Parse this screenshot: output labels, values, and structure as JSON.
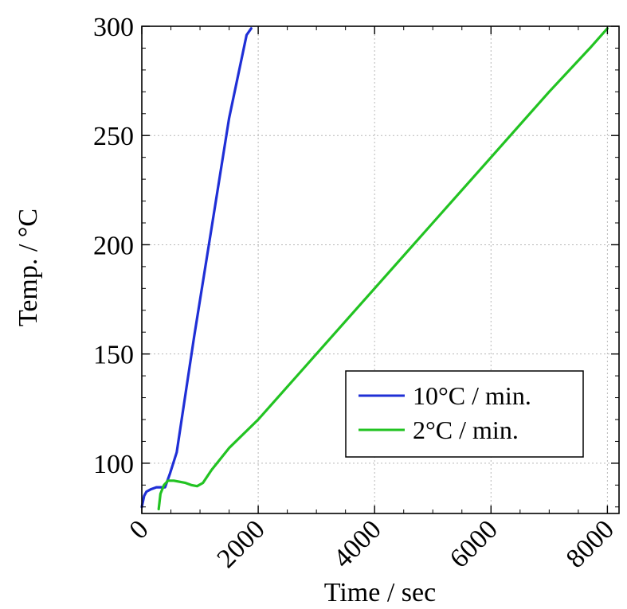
{
  "chart_data": {
    "type": "line",
    "title": "",
    "xlabel": "Time / sec",
    "ylabel": "Temp. / °C",
    "xlim": [
      0,
      8200
    ],
    "ylim": [
      77,
      300
    ],
    "xticks": [
      0,
      2000,
      4000,
      6000,
      8000
    ],
    "yticks": [
      100,
      150,
      200,
      250,
      300
    ],
    "xtick_labels": [
      "0",
      "2000",
      "4000",
      "6000",
      "8000"
    ],
    "ytick_labels": [
      "100",
      "150",
      "200",
      "250",
      "300"
    ],
    "grid": true,
    "legend_position": "lower-right",
    "series": [
      {
        "name": "10°C / min.",
        "color": "#1f2fd6",
        "x": [
          0,
          40,
          80,
          150,
          250,
          330,
          400,
          480,
          600,
          900,
          1200,
          1500,
          1800,
          1880
        ],
        "y": [
          80,
          85,
          87,
          88,
          89,
          89,
          89,
          95,
          105,
          158,
          208,
          258,
          296,
          299
        ]
      },
      {
        "name": "2°C / min.",
        "color": "#22c322",
        "x": [
          290,
          320,
          380,
          450,
          550,
          650,
          750,
          850,
          950,
          1050,
          1200,
          1500,
          2000,
          3000,
          4000,
          5000,
          6000,
          7000,
          7700,
          8000
        ],
        "y": [
          79,
          86,
          90,
          92,
          92,
          91.5,
          91,
          90,
          89.5,
          91,
          97,
          107,
          120,
          150,
          180,
          210,
          240,
          270,
          290,
          299
        ]
      }
    ]
  }
}
